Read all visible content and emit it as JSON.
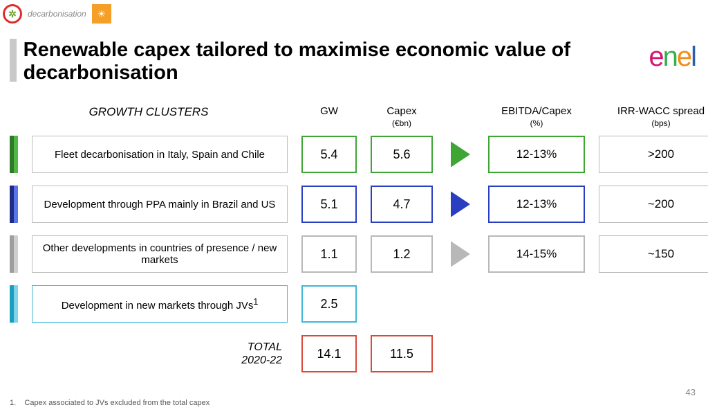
{
  "topbar": {
    "decarb_label": "decarbonisation"
  },
  "title": "Renewable capex tailored to maximise economic value of decarbonisation",
  "logo": {
    "c1": "e",
    "c2": "n",
    "c3": "e",
    "c4": "l"
  },
  "headers": {
    "growth": "GROWTH CLUSTERS",
    "gw": "GW",
    "capex": "Capex",
    "capex_sub": "(€bn)",
    "ebitda": "EBITDA/Capex",
    "ebitda_sub": "(%)",
    "irr": "IRR-WACC spread",
    "irr_sub": "(bps)"
  },
  "rows": [
    {
      "label": "Fleet decarbonisation in Italy, Spain and Chile",
      "gw": "5.4",
      "capex": "5.6",
      "ebitda": "12-13%",
      "irr": ">200",
      "color": "#3fa535",
      "stripe": [
        "#2e7a27",
        "#51b848"
      ]
    },
    {
      "label": "Development through PPA mainly in Brazil and US",
      "gw": "5.1",
      "capex": "4.7",
      "ebitda": "12-13%",
      "irr": "~200",
      "color": "#2a3fbf",
      "stripe": [
        "#1e2c88",
        "#5a74e8"
      ]
    },
    {
      "label": "Other developments in countries of presence / new markets",
      "gw": "1.1",
      "capex": "1.2",
      "ebitda": "14-15%",
      "irr": "~150",
      "color": "#b8b8b8",
      "stripe": [
        "#9e9e9e",
        "#cfcfcf"
      ]
    }
  ],
  "jv_row": {
    "label": "Development in new markets through JVs",
    "sup": "1",
    "gw": "2.5",
    "color": "#3fb7d6",
    "stripe": [
      "#1a9fc0",
      "#7fd4e8"
    ]
  },
  "total": {
    "label": "TOTAL 2020-22",
    "gw": "14.1",
    "capex": "11.5",
    "color": "#d84a3a"
  },
  "footnote": {
    "num": "1.",
    "text": "Capex associated to JVs excluded from the total capex"
  },
  "page": "43"
}
